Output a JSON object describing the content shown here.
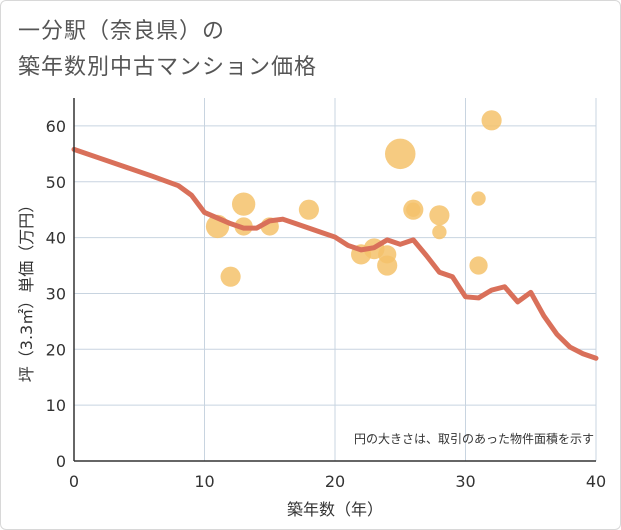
{
  "chart_data": {
    "type": "scatter",
    "title_line1": "一分駅（奈良県）の",
    "title_line2": "築年数別中古マンション価格",
    "xlabel": "築年数（年）",
    "ylabel": "坪（3.3㎡）単価（万円）",
    "note": "円の大きさは、取引のあった物件面積を示す",
    "xlim": [
      0,
      40
    ],
    "ylim": [
      0,
      65
    ],
    "xticks": [
      0,
      10,
      20,
      30,
      40
    ],
    "yticks": [
      0,
      10,
      20,
      30,
      40,
      50,
      60
    ],
    "grid": true,
    "colors": {
      "bubble": "#f5c26b",
      "line": "#d9705a",
      "grid": "#c8d4e0"
    },
    "bubbles": [
      {
        "x": 11,
        "y": 42,
        "size": 3
      },
      {
        "x": 12,
        "y": 33,
        "size": 2
      },
      {
        "x": 13,
        "y": 46,
        "size": 3
      },
      {
        "x": 13,
        "y": 42,
        "size": 1.5
      },
      {
        "x": 15,
        "y": 42,
        "size": 1.5
      },
      {
        "x": 18,
        "y": 45,
        "size": 2
      },
      {
        "x": 22,
        "y": 37,
        "size": 2
      },
      {
        "x": 23,
        "y": 38,
        "size": 2.2
      },
      {
        "x": 24,
        "y": 37,
        "size": 1.5
      },
      {
        "x": 24,
        "y": 35,
        "size": 2
      },
      {
        "x": 25,
        "y": 55,
        "size": 6
      },
      {
        "x": 26,
        "y": 45,
        "size": 2
      },
      {
        "x": 26,
        "y": 45,
        "size": 0.7
      },
      {
        "x": 28,
        "y": 44,
        "size": 2
      },
      {
        "x": 28,
        "y": 41,
        "size": 0.7
      },
      {
        "x": 31,
        "y": 47,
        "size": 0.7
      },
      {
        "x": 31,
        "y": 35,
        "size": 1.5
      },
      {
        "x": 32,
        "y": 61,
        "size": 2
      }
    ],
    "trend": {
      "x": [
        0,
        2,
        4,
        6,
        8,
        9,
        10,
        11,
        12,
        13,
        14,
        15,
        16,
        17,
        18,
        19,
        20,
        21,
        22,
        23,
        24,
        25,
        26,
        27,
        28,
        29,
        30,
        31,
        32,
        33,
        34,
        35,
        36,
        37,
        38,
        39,
        40
      ],
      "y": [
        55.8,
        54.2,
        52.6,
        51,
        49.3,
        47.6,
        44.5,
        43.5,
        42.5,
        41.7,
        41.7,
        43,
        43.3,
        42.5,
        41.7,
        40.9,
        40.1,
        38.6,
        37.8,
        38.2,
        39.6,
        38.8,
        39.6,
        36.8,
        33.8,
        33,
        29.4,
        29.2,
        30.6,
        31.2,
        28.5,
        30.2,
        26,
        22.7,
        20.4,
        19.2,
        18.4
      ]
    }
  }
}
